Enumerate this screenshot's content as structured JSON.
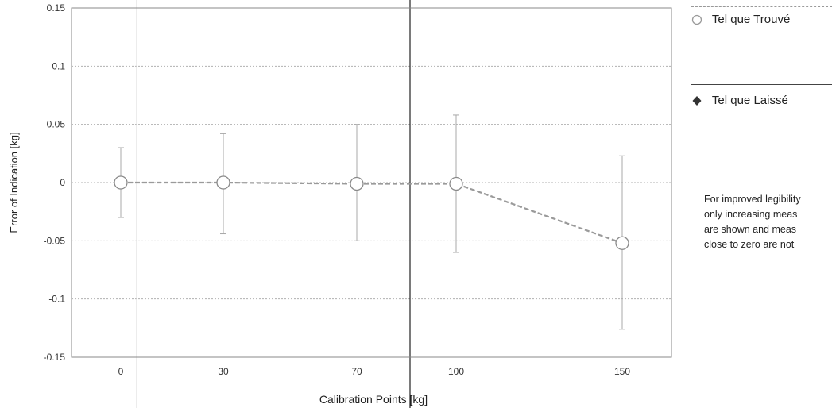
{
  "chart_data": {
    "type": "line",
    "title": "",
    "xlabel": "Calibration Points [kg]",
    "ylabel": "Error of Indication [kg]",
    "ylim": [
      -0.15,
      0.15
    ],
    "y_ticks": [
      0.15,
      0.1,
      0.05,
      0,
      -0.05,
      -0.1,
      -0.15
    ],
    "y_tick_labels": [
      "0.15",
      "0.1",
      "0.05",
      "0",
      "-0.05",
      "-0.1",
      "-0.15"
    ],
    "categories": [
      "0",
      "30",
      "70",
      "100",
      "150"
    ],
    "grid": true,
    "legend_position": "right",
    "series": [
      {
        "name": "Tel que Trouvé",
        "marker": "open-circle",
        "line_style": "dashed",
        "color": "#9a9a9a",
        "values": [
          0.0,
          0.0,
          -0.001,
          -0.001,
          -0.052
        ],
        "error_upper": [
          0.03,
          0.042,
          0.05,
          0.058,
          0.023
        ],
        "error_lower": [
          -0.03,
          -0.044,
          -0.05,
          -0.06,
          -0.126
        ]
      }
    ],
    "legend_entries": [
      {
        "name": "Tel que Trouvé",
        "marker": "open-circle"
      },
      {
        "name": "Tel que Laissé",
        "marker": "filled-diamond"
      }
    ],
    "note_lines": [
      "For improved legibility",
      "only increasing meas",
      "are shown and meas",
      "close to zero are not"
    ]
  }
}
